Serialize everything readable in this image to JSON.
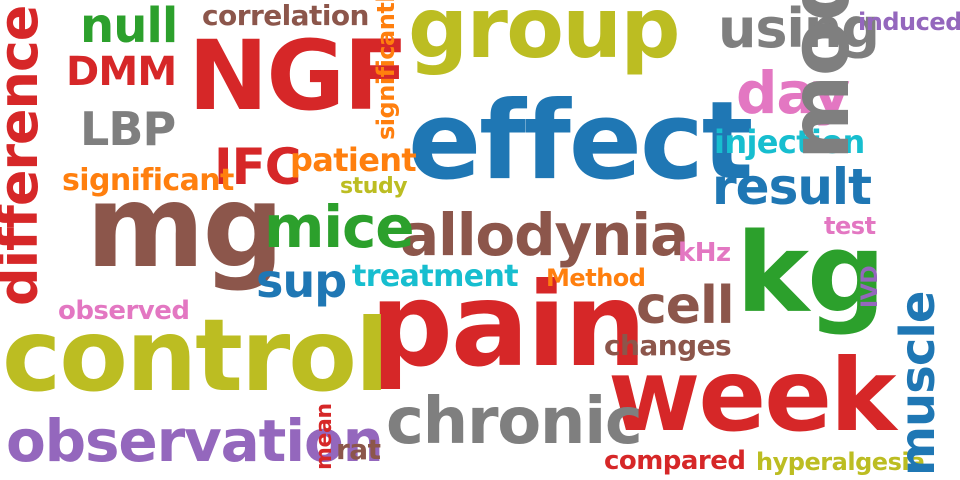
{
  "words": [
    {
      "text": "group",
      "color": "#bcbd22"
    },
    {
      "text": "NGF",
      "color": "#d62728"
    },
    {
      "text": "effect",
      "color": "#1f77b4"
    },
    {
      "text": "pain",
      "color": "#d62728"
    },
    {
      "text": "control",
      "color": "#bcbd22"
    },
    {
      "text": "week",
      "color": "#d62728"
    },
    {
      "text": "mg",
      "color": "#8c564b"
    },
    {
      "text": "kg",
      "color": "#2ca02c"
    },
    {
      "text": "model",
      "color": "#7f7f7f"
    },
    {
      "text": "observation",
      "color": "#9467bd"
    },
    {
      "text": "chronic",
      "color": "#7f7f7f"
    },
    {
      "text": "allodynia",
      "color": "#8c564b"
    },
    {
      "text": "difference",
      "color": "#d62728"
    },
    {
      "text": "result",
      "color": "#1f77b4"
    },
    {
      "text": "mice",
      "color": "#2ca02c"
    },
    {
      "text": "using",
      "color": "#7f7f7f"
    },
    {
      "text": "day",
      "color": "#e377c2"
    },
    {
      "text": "cell",
      "color": "#8c564b"
    },
    {
      "text": "muscle",
      "color": "#1f77b4"
    },
    {
      "text": "LBP",
      "color": "#7f7f7f"
    },
    {
      "text": "IFC",
      "color": "#d62728"
    },
    {
      "text": "null",
      "color": "#2ca02c"
    },
    {
      "text": "DMM",
      "color": "#d62728"
    },
    {
      "text": "sup",
      "color": "#1f77b4"
    },
    {
      "text": "treatment",
      "color": "#17becf"
    },
    {
      "text": "patient",
      "color": "#ff7f0e"
    },
    {
      "text": "injection",
      "color": "#17becf"
    },
    {
      "text": "changes",
      "color": "#8c564b"
    },
    {
      "text": "significant",
      "color": "#ff7f0e"
    },
    {
      "text": "correlation",
      "color": "#8c564b"
    },
    {
      "text": "compared",
      "color": "#d62728"
    },
    {
      "text": "hyperalgesia",
      "color": "#bcbd22"
    },
    {
      "text": "observed",
      "color": "#e377c2"
    },
    {
      "text": "significantly",
      "color": "#ff7f0e"
    },
    {
      "text": "Method",
      "color": "#ff7f0e"
    },
    {
      "text": "study",
      "color": "#bcbd22"
    },
    {
      "text": "induced",
      "color": "#9467bd"
    },
    {
      "text": "kHz",
      "color": "#e377c2"
    },
    {
      "text": "test",
      "color": "#e377c2"
    },
    {
      "text": "rat",
      "color": "#8c564b"
    },
    {
      "text": "mean",
      "color": "#d62728"
    },
    {
      "text": "IVD",
      "color": "#9467bd"
    }
  ]
}
